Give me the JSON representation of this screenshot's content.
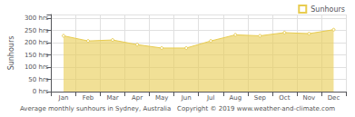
{
  "chart_data": {
    "type": "area",
    "categories": [
      "Jan",
      "Feb",
      "Mar",
      "Apr",
      "May",
      "Jun",
      "Jul",
      "Aug",
      "Sep",
      "Oct",
      "Nov",
      "Dec"
    ],
    "series": [
      {
        "name": "Sunhours",
        "color": "#e8cc50",
        "marker": "circle",
        "values": [
          228,
          207,
          211,
          192,
          178,
          178,
          207,
          232,
          228,
          241,
          237,
          253
        ]
      }
    ],
    "ylabel": "Sunhours",
    "ylim": [
      0,
      315
    ],
    "yticks": [
      {
        "value": 0,
        "label": "0 hrs"
      },
      {
        "value": 50,
        "label": "50 hrs"
      },
      {
        "value": 100,
        "label": "100 hrs"
      },
      {
        "value": 150,
        "label": "150 hrs"
      },
      {
        "value": 200,
        "label": "200 hrs"
      },
      {
        "value": 250,
        "label": "250 hrs"
      },
      {
        "value": 300,
        "label": "300 hrs"
      }
    ],
    "grid": true,
    "legend": "upper right",
    "annotations": [
      "Average monthly sunhours in Sydney, Australia   Copyright © 2019 www.weather-and-climate.com"
    ]
  }
}
